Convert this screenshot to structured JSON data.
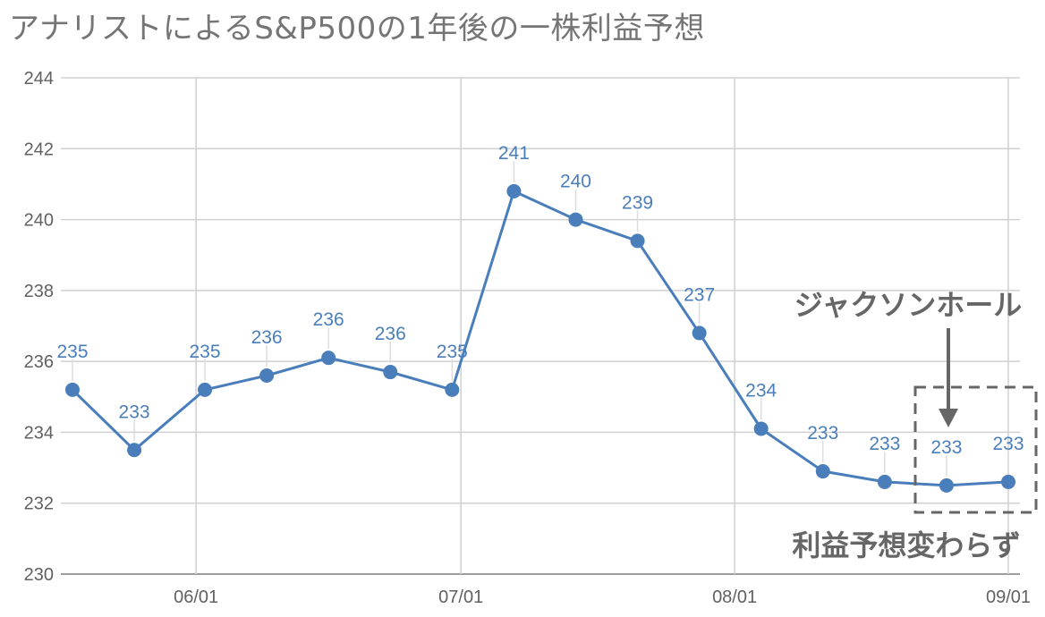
{
  "chart_data": {
    "type": "line",
    "title": "アナリストによるS&P500の1年後の一株利益予想",
    "xlabel": "",
    "ylabel": "",
    "ylim": [
      230,
      244
    ],
    "yticks": [
      "230",
      "232",
      "234",
      "236",
      "238",
      "240",
      "242",
      "244"
    ],
    "xtick_labels": [
      "06/01",
      "07/01",
      "08/01",
      "09/01"
    ],
    "x": [
      "05/18",
      "05/25",
      "06/02",
      "06/09",
      "06/16",
      "06/23",
      "06/30",
      "07/07",
      "07/14",
      "07/21",
      "07/28",
      "08/04",
      "08/11",
      "08/18",
      "08/25",
      "09/01"
    ],
    "series": [
      {
        "name": "",
        "values": [
          235.2,
          233.5,
          235.2,
          235.6,
          236.1,
          235.7,
          235.2,
          240.8,
          240.0,
          239.4,
          236.8,
          234.1,
          232.9,
          232.6,
          232.5,
          232.6
        ],
        "data_labels": [
          "235",
          "233",
          "235",
          "236",
          "236",
          "236",
          "235",
          "241",
          "240",
          "239",
          "237",
          "234",
          "233",
          "233",
          "233",
          "233"
        ]
      }
    ],
    "grid": true,
    "line_color": "#4a7ebb",
    "annotations": [
      {
        "text": "ジャクソンホール"
      },
      {
        "text": "利益予想変わらず"
      }
    ]
  }
}
